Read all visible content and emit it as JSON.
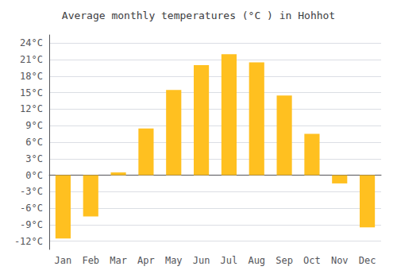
{
  "chart_data": {
    "type": "bar",
    "title": "Average monthly temperatures (°C ) in Hohhot",
    "categories": [
      "Jan",
      "Feb",
      "Mar",
      "Apr",
      "May",
      "Jun",
      "Jul",
      "Aug",
      "Sep",
      "Oct",
      "Nov",
      "Dec"
    ],
    "values": [
      -11.5,
      -7.5,
      0.5,
      8.5,
      15.5,
      20.0,
      22.0,
      20.5,
      14.5,
      7.5,
      -1.5,
      -9.5
    ],
    "color": "#FFC020",
    "ylim": [
      -13.5,
      25.5
    ],
    "yticks": [
      {
        "value": -12,
        "label": "-12°C"
      },
      {
        "value": -9,
        "label": "-9°C"
      },
      {
        "value": -6,
        "label": "-6°C"
      },
      {
        "value": -3,
        "label": "-3°C"
      },
      {
        "value": 0,
        "label": "0°C"
      },
      {
        "value": 3,
        "label": "3°C"
      },
      {
        "value": 6,
        "label": "6°C"
      },
      {
        "value": 9,
        "label": "9°C"
      },
      {
        "value": 12,
        "label": "12°C"
      },
      {
        "value": 15,
        "label": "15°C"
      },
      {
        "value": 18,
        "label": "18°C"
      },
      {
        "value": 21,
        "label": "21°C"
      },
      {
        "value": 24,
        "label": "24°C"
      }
    ],
    "grid": true
  }
}
